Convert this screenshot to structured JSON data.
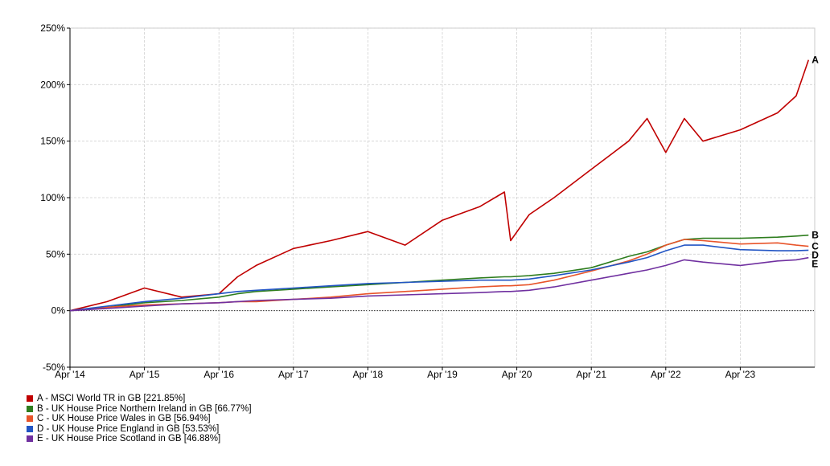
{
  "chart_data": {
    "type": "line",
    "title": "",
    "xlabel": "",
    "ylabel": "",
    "ylim": [
      -50,
      250
    ],
    "xlim": [
      "2014-04",
      "2024-04"
    ],
    "grid": true,
    "legend_position": "bottom-left",
    "x_ticks": [
      "Apr '14",
      "Apr '15",
      "Apr '16",
      "Apr '17",
      "Apr '18",
      "Apr '19",
      "Apr '20",
      "Apr '21",
      "Apr '22",
      "Apr '23"
    ],
    "y_ticks": [
      "250%",
      "200%",
      "150%",
      "100%",
      "50%",
      "0%",
      "-50%"
    ],
    "x": [
      "2014-04",
      "2014-10",
      "2015-04",
      "2015-10",
      "2016-04",
      "2016-07",
      "2016-10",
      "2017-04",
      "2017-10",
      "2018-04",
      "2018-10",
      "2019-04",
      "2019-10",
      "2020-02",
      "2020-03",
      "2020-06",
      "2020-10",
      "2021-04",
      "2021-10",
      "2022-01",
      "2022-04",
      "2022-07",
      "2022-10",
      "2023-04",
      "2023-10",
      "2024-01",
      "2024-03"
    ],
    "series": [
      {
        "name": "A - MSCI World TR in GB [221.85%]",
        "end_label": "A",
        "color": "#c00000",
        "values": [
          0,
          8,
          20,
          12,
          15,
          30,
          40,
          55,
          62,
          70,
          58,
          80,
          92,
          105,
          62,
          85,
          100,
          125,
          150,
          170,
          140,
          170,
          150,
          160,
          175,
          190,
          221.85
        ]
      },
      {
        "name": "B - UK House Price Northern Ireland in GB [66.77%]",
        "end_label": "B",
        "color": "#2e7d1e",
        "values": [
          0,
          3,
          7,
          9,
          12,
          15,
          17,
          19,
          21,
          23,
          25,
          27,
          29,
          30,
          30,
          31,
          33,
          38,
          48,
          52,
          58,
          63,
          64,
          64,
          65,
          66,
          66.77
        ]
      },
      {
        "name": "C - UK House Price Wales in GB [56.94%]",
        "end_label": "C",
        "color": "#e8542a",
        "values": [
          0,
          3,
          5,
          6,
          7,
          8,
          8,
          10,
          12,
          15,
          17,
          19,
          21,
          22,
          22,
          23,
          27,
          35,
          44,
          50,
          58,
          63,
          62,
          59,
          60,
          58,
          56.94
        ]
      },
      {
        "name": "D - UK House Price England in GB [53.53%]",
        "end_label": "D",
        "color": "#2255c4",
        "values": [
          0,
          4,
          8,
          11,
          15,
          17,
          18,
          20,
          22,
          24,
          25,
          26,
          27,
          27,
          27,
          28,
          31,
          36,
          43,
          47,
          53,
          58,
          58,
          54,
          53,
          53,
          53.53
        ]
      },
      {
        "name": "E - UK House Price Scotland in GB [46.88%]",
        "end_label": "E",
        "color": "#7030a0",
        "values": [
          0,
          2,
          4,
          6,
          7,
          8,
          9,
          10,
          11,
          13,
          14,
          15,
          16,
          17,
          17,
          18,
          21,
          27,
          33,
          36,
          40,
          45,
          43,
          40,
          44,
          45,
          46.88
        ]
      }
    ]
  }
}
